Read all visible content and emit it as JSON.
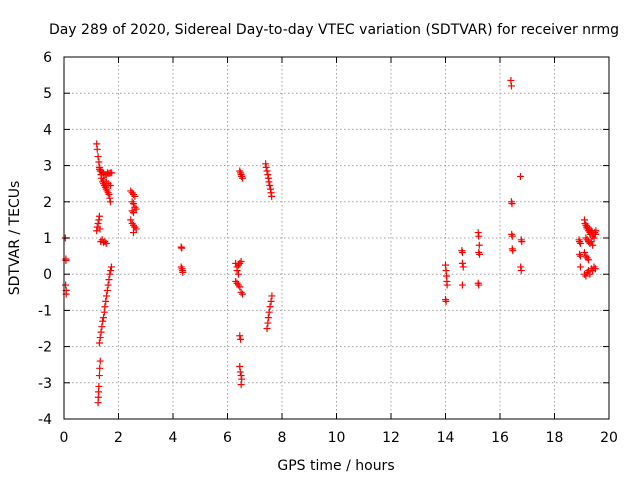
{
  "chart_data": {
    "type": "scatter",
    "title": "Day 289 of 2020, Sidereal Day-to-day VTEC variation (SDTVAR) for receiver nrmg",
    "xlabel": "GPS time / hours",
    "ylabel": "SDTVAR / TECUs",
    "xlim": [
      0,
      20
    ],
    "ylim": [
      -4,
      6
    ],
    "x_ticks": [
      "0",
      "2",
      "4",
      "6",
      "8",
      "10",
      "12",
      "14",
      "16",
      "18",
      "20"
    ],
    "y_ticks": [
      "-4",
      "-3",
      "-2",
      "-1",
      "0",
      "1",
      "2",
      "3",
      "4",
      "5",
      "6"
    ],
    "grid": true,
    "marker": "+",
    "series": [
      {
        "name": "SDTVAR",
        "color": "#ff0000",
        "points": [
          [
            0.05,
            1.0
          ],
          [
            0.07,
            0.42
          ],
          [
            0.07,
            0.38
          ],
          [
            0.06,
            -0.3
          ],
          [
            0.08,
            -0.45
          ],
          [
            0.08,
            -0.55
          ],
          [
            1.2,
            3.6
          ],
          [
            1.22,
            3.45
          ],
          [
            1.25,
            3.25
          ],
          [
            1.28,
            3.1
          ],
          [
            1.3,
            2.95
          ],
          [
            1.33,
            2.85
          ],
          [
            1.36,
            2.75
          ],
          [
            1.38,
            2.65
          ],
          [
            1.42,
            2.55
          ],
          [
            1.45,
            2.5
          ],
          [
            1.48,
            2.45
          ],
          [
            1.52,
            2.4
          ],
          [
            1.55,
            2.35
          ],
          [
            1.58,
            2.3
          ],
          [
            1.62,
            2.25
          ],
          [
            1.65,
            2.2
          ],
          [
            1.68,
            2.1
          ],
          [
            1.7,
            2.0
          ],
          [
            1.3,
            2.9
          ],
          [
            1.35,
            2.85
          ],
          [
            1.4,
            2.8
          ],
          [
            1.45,
            2.8
          ],
          [
            1.5,
            2.75
          ],
          [
            1.55,
            2.75
          ],
          [
            1.6,
            2.8
          ],
          [
            1.65,
            2.78
          ],
          [
            1.7,
            2.8
          ],
          [
            1.75,
            2.8
          ],
          [
            1.45,
            2.6
          ],
          [
            1.55,
            2.55
          ],
          [
            1.62,
            2.5
          ],
          [
            1.7,
            2.45
          ],
          [
            1.2,
            1.2
          ],
          [
            1.22,
            1.3
          ],
          [
            1.25,
            1.4
          ],
          [
            1.28,
            1.5
          ],
          [
            1.3,
            1.6
          ],
          [
            1.32,
            1.25
          ],
          [
            1.35,
            0.9
          ],
          [
            1.4,
            0.95
          ],
          [
            1.45,
            0.88
          ],
          [
            1.5,
            0.9
          ],
          [
            1.55,
            0.85
          ],
          [
            1.3,
            -1.9
          ],
          [
            1.33,
            -1.75
          ],
          [
            1.36,
            -1.6
          ],
          [
            1.39,
            -1.45
          ],
          [
            1.42,
            -1.3
          ],
          [
            1.45,
            -1.2
          ],
          [
            1.48,
            -1.05
          ],
          [
            1.5,
            -0.9
          ],
          [
            1.53,
            -0.75
          ],
          [
            1.56,
            -0.6
          ],
          [
            1.59,
            -0.45
          ],
          [
            1.62,
            -0.3
          ],
          [
            1.65,
            -0.15
          ],
          [
            1.68,
            0.0
          ],
          [
            1.71,
            0.1
          ],
          [
            1.74,
            0.2
          ],
          [
            1.25,
            -3.55
          ],
          [
            1.26,
            -3.4
          ],
          [
            1.27,
            -3.25
          ],
          [
            1.28,
            -3.1
          ],
          [
            1.3,
            -2.8
          ],
          [
            1.31,
            -2.6
          ],
          [
            1.33,
            -2.4
          ],
          [
            2.45,
            2.3
          ],
          [
            2.5,
            2.25
          ],
          [
            2.55,
            2.2
          ],
          [
            2.6,
            2.15
          ],
          [
            2.5,
            2.0
          ],
          [
            2.55,
            1.95
          ],
          [
            2.6,
            1.85
          ],
          [
            2.65,
            1.8
          ],
          [
            2.5,
            1.75
          ],
          [
            2.55,
            1.7
          ],
          [
            2.45,
            1.5
          ],
          [
            2.5,
            1.4
          ],
          [
            2.55,
            1.35
          ],
          [
            2.6,
            1.3
          ],
          [
            2.65,
            1.25
          ],
          [
            2.55,
            1.15
          ],
          [
            4.3,
            0.75
          ],
          [
            4.32,
            0.72
          ],
          [
            4.3,
            0.2
          ],
          [
            4.33,
            0.15
          ],
          [
            4.35,
            0.1
          ],
          [
            4.36,
            0.05
          ],
          [
            6.3,
            0.3
          ],
          [
            6.35,
            0.2
          ],
          [
            6.4,
            0.25
          ],
          [
            6.45,
            0.3
          ],
          [
            6.5,
            0.35
          ],
          [
            6.35,
            0.1
          ],
          [
            6.4,
            0.0
          ],
          [
            6.3,
            -0.2
          ],
          [
            6.35,
            -0.25
          ],
          [
            6.4,
            -0.3
          ],
          [
            6.45,
            -0.35
          ],
          [
            6.5,
            -0.5
          ],
          [
            6.55,
            -0.55
          ],
          [
            6.45,
            2.85
          ],
          [
            6.48,
            2.8
          ],
          [
            6.5,
            2.75
          ],
          [
            6.52,
            2.7
          ],
          [
            6.55,
            2.65
          ],
          [
            6.45,
            -1.7
          ],
          [
            6.48,
            -1.8
          ],
          [
            6.45,
            -2.55
          ],
          [
            6.47,
            -2.7
          ],
          [
            6.5,
            -2.8
          ],
          [
            6.52,
            -2.9
          ],
          [
            6.5,
            -3.05
          ],
          [
            7.4,
            3.05
          ],
          [
            7.42,
            2.95
          ],
          [
            7.45,
            2.85
          ],
          [
            7.48,
            2.75
          ],
          [
            7.5,
            2.65
          ],
          [
            7.52,
            2.55
          ],
          [
            7.55,
            2.45
          ],
          [
            7.58,
            2.35
          ],
          [
            7.6,
            2.25
          ],
          [
            7.62,
            2.15
          ],
          [
            7.45,
            -1.5
          ],
          [
            7.48,
            -1.35
          ],
          [
            7.5,
            -1.2
          ],
          [
            7.53,
            -1.05
          ],
          [
            7.56,
            -0.9
          ],
          [
            7.6,
            -0.75
          ],
          [
            7.63,
            -0.6
          ],
          [
            14.0,
            0.25
          ],
          [
            14.02,
            0.1
          ],
          [
            14.04,
            -0.05
          ],
          [
            14.05,
            -0.2
          ],
          [
            14.06,
            -0.3
          ],
          [
            14.0,
            -0.7
          ],
          [
            14.02,
            -0.75
          ],
          [
            14.6,
            0.65
          ],
          [
            14.62,
            0.6
          ],
          [
            14.62,
            0.3
          ],
          [
            14.65,
            0.2
          ],
          [
            14.62,
            -0.3
          ],
          [
            15.2,
            1.15
          ],
          [
            15.22,
            1.05
          ],
          [
            15.24,
            0.8
          ],
          [
            15.22,
            0.6
          ],
          [
            15.25,
            0.55
          ],
          [
            15.2,
            -0.25
          ],
          [
            15.22,
            -0.3
          ],
          [
            16.4,
            5.35
          ],
          [
            16.42,
            5.2
          ],
          [
            16.42,
            2.0
          ],
          [
            16.44,
            1.95
          ],
          [
            16.43,
            1.1
          ],
          [
            16.45,
            1.05
          ],
          [
            16.45,
            0.7
          ],
          [
            16.47,
            0.65
          ],
          [
            16.75,
            2.7
          ],
          [
            16.78,
            0.95
          ],
          [
            16.8,
            0.9
          ],
          [
            16.76,
            0.2
          ],
          [
            16.78,
            0.1
          ],
          [
            18.9,
            0.95
          ],
          [
            18.92,
            0.9
          ],
          [
            18.95,
            0.85
          ],
          [
            18.92,
            0.55
          ],
          [
            18.95,
            0.5
          ],
          [
            18.95,
            0.2
          ],
          [
            19.1,
            1.5
          ],
          [
            19.12,
            1.4
          ],
          [
            19.15,
            1.35
          ],
          [
            19.18,
            1.3
          ],
          [
            19.2,
            1.25
          ],
          [
            19.22,
            1.3
          ],
          [
            19.25,
            1.2
          ],
          [
            19.28,
            1.25
          ],
          [
            19.3,
            1.15
          ],
          [
            19.32,
            1.1
          ],
          [
            19.35,
            1.2
          ],
          [
            19.38,
            1.15
          ],
          [
            19.4,
            1.05
          ],
          [
            19.42,
            1.1
          ],
          [
            19.45,
            1.0
          ],
          [
            19.48,
            1.15
          ],
          [
            19.5,
            1.1
          ],
          [
            19.52,
            1.2
          ],
          [
            19.15,
            1.0
          ],
          [
            19.2,
            0.95
          ],
          [
            19.25,
            0.9
          ],
          [
            19.3,
            0.85
          ],
          [
            19.35,
            0.9
          ],
          [
            19.4,
            0.8
          ],
          [
            19.1,
            0.6
          ],
          [
            19.15,
            0.5
          ],
          [
            19.2,
            0.45
          ],
          [
            19.25,
            0.4
          ],
          [
            19.1,
            0.0
          ],
          [
            19.15,
            -0.05
          ],
          [
            19.2,
            0.05
          ],
          [
            19.25,
            0.1
          ],
          [
            19.3,
            0.0
          ],
          [
            19.35,
            0.15
          ],
          [
            19.4,
            0.1
          ],
          [
            19.45,
            0.2
          ],
          [
            19.5,
            0.15
          ]
        ]
      }
    ]
  }
}
